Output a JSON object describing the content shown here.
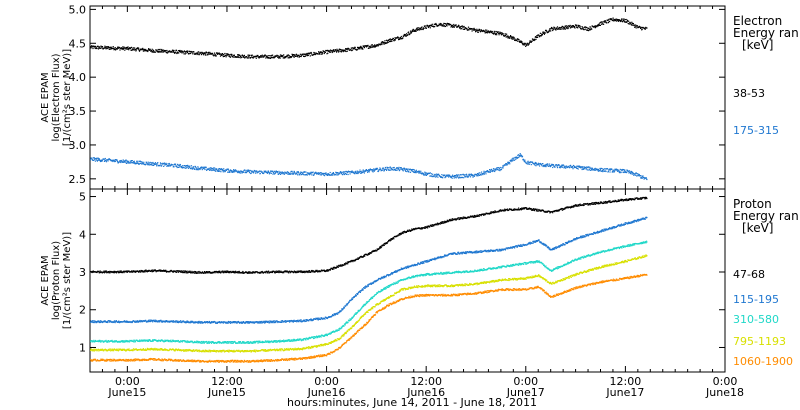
{
  "chart_data": [
    {
      "type": "scatter",
      "ylabel": [
        "ACE EPAM",
        "log(Electron Flux)",
        "[1/(cm²s ster MeV)]"
      ],
      "ylim": [
        2.35,
        5.05
      ],
      "yticks": [
        "2.5",
        "3.0",
        "3.5",
        "4.0",
        "4.5",
        "5.0"
      ],
      "legend_title": [
        "Electron",
        "Energy ran",
        "[keV]"
      ],
      "series": [
        {
          "name": "38-53",
          "color": "#000000",
          "x": [
            -0.375,
            0,
            0.25,
            0.5,
            0.75,
            1.0,
            1.25,
            1.5,
            1.75,
            2.0,
            2.25,
            2.5,
            2.625,
            2.75,
            2.875,
            3.0,
            3.125,
            3.25,
            3.5,
            3.75,
            3.875,
            4.0,
            4.125,
            4.25,
            4.5,
            4.625,
            4.75,
            4.875,
            5.0,
            5.125,
            5.21
          ],
          "values": [
            4.45,
            4.43,
            4.4,
            4.38,
            4.36,
            4.33,
            4.31,
            4.31,
            4.33,
            4.38,
            4.42,
            4.48,
            4.55,
            4.6,
            4.7,
            4.75,
            4.79,
            4.77,
            4.7,
            4.65,
            4.58,
            4.48,
            4.62,
            4.72,
            4.76,
            4.72,
            4.8,
            4.86,
            4.84,
            4.74,
            4.72
          ]
        },
        {
          "name": "175-315",
          "color": "#1f77d0",
          "x": [
            -0.375,
            0,
            0.25,
            0.5,
            0.75,
            1.0,
            1.25,
            1.5,
            1.75,
            2.0,
            2.25,
            2.5,
            2.625,
            2.75,
            2.875,
            3.0,
            3.125,
            3.25,
            3.5,
            3.625,
            3.75,
            3.875,
            3.94,
            4.0,
            4.125,
            4.25,
            4.5,
            4.75,
            5.0,
            5.125,
            5.21
          ],
          "values": [
            2.8,
            2.76,
            2.73,
            2.7,
            2.66,
            2.63,
            2.61,
            2.6,
            2.59,
            2.58,
            2.6,
            2.64,
            2.66,
            2.65,
            2.62,
            2.58,
            2.55,
            2.54,
            2.56,
            2.62,
            2.66,
            2.8,
            2.86,
            2.75,
            2.72,
            2.7,
            2.68,
            2.64,
            2.62,
            2.56,
            2.5
          ]
        }
      ]
    },
    {
      "type": "scatter",
      "ylabel": [
        "ACE EPAM",
        "log(Proton Flux)",
        "[1/(cm²s ster MeV)]"
      ],
      "ylim": [
        0.35,
        5.2
      ],
      "yticks": [
        "1",
        "2",
        "3",
        "4",
        "5"
      ],
      "legend_title": [
        "Proton",
        "Energy ran",
        "[keV]"
      ],
      "series": [
        {
          "name": "47-68",
          "color": "#000000",
          "x": [
            -0.375,
            0,
            0.25,
            0.5,
            0.75,
            1.0,
            1.25,
            1.5,
            1.75,
            2.0,
            2.25,
            2.5,
            2.625,
            2.75,
            2.875,
            3.0,
            3.125,
            3.25,
            3.5,
            3.75,
            4.0,
            4.25,
            4.5,
            4.75,
            5.0,
            5.21
          ],
          "values": [
            3.02,
            3.02,
            3.05,
            3.03,
            3.0,
            3.02,
            3.0,
            3.02,
            3.02,
            3.05,
            3.3,
            3.6,
            3.85,
            4.05,
            4.15,
            4.2,
            4.3,
            4.4,
            4.5,
            4.65,
            4.7,
            4.6,
            4.78,
            4.85,
            4.93,
            4.98
          ]
        },
        {
          "name": "115-195",
          "color": "#1f77d0",
          "x": [
            -0.375,
            0,
            0.25,
            0.5,
            0.75,
            1.0,
            1.25,
            1.5,
            1.75,
            2.0,
            2.125,
            2.25,
            2.375,
            2.5,
            2.625,
            2.75,
            2.875,
            3.0,
            3.125,
            3.25,
            3.5,
            3.75,
            4.0,
            4.125,
            4.25,
            4.5,
            4.75,
            5.0,
            5.21
          ],
          "values": [
            1.7,
            1.7,
            1.72,
            1.7,
            1.68,
            1.68,
            1.68,
            1.7,
            1.72,
            1.8,
            1.95,
            2.3,
            2.6,
            2.8,
            2.95,
            3.1,
            3.2,
            3.3,
            3.4,
            3.5,
            3.55,
            3.6,
            3.75,
            3.85,
            3.6,
            3.9,
            4.1,
            4.3,
            4.45
          ]
        },
        {
          "name": "310-580",
          "color": "#20d8c8",
          "x": [
            -0.375,
            0,
            0.25,
            0.5,
            0.75,
            1.0,
            1.25,
            1.5,
            1.75,
            2.0,
            2.125,
            2.25,
            2.375,
            2.5,
            2.625,
            2.75,
            2.875,
            3.0,
            3.25,
            3.5,
            3.75,
            4.0,
            4.125,
            4.25,
            4.5,
            4.75,
            5.0,
            5.21
          ],
          "values": [
            1.18,
            1.18,
            1.2,
            1.18,
            1.15,
            1.15,
            1.15,
            1.18,
            1.22,
            1.35,
            1.5,
            1.8,
            2.15,
            2.45,
            2.65,
            2.8,
            2.9,
            2.95,
            3.0,
            3.05,
            3.15,
            3.25,
            3.3,
            3.05,
            3.35,
            3.55,
            3.7,
            3.82
          ]
        },
        {
          "name": "795-1193",
          "color": "#d8e000",
          "x": [
            -0.375,
            0,
            0.25,
            0.5,
            0.75,
            1.0,
            1.25,
            1.5,
            1.75,
            2.0,
            2.125,
            2.25,
            2.375,
            2.5,
            2.625,
            2.75,
            2.875,
            3.0,
            3.25,
            3.5,
            3.75,
            4.0,
            4.125,
            4.25,
            4.5,
            4.75,
            5.0,
            5.21
          ],
          "values": [
            0.95,
            0.95,
            0.97,
            0.95,
            0.92,
            0.92,
            0.92,
            0.95,
            0.98,
            1.1,
            1.25,
            1.55,
            1.9,
            2.15,
            2.35,
            2.55,
            2.62,
            2.65,
            2.65,
            2.7,
            2.8,
            2.85,
            2.92,
            2.7,
            2.95,
            3.15,
            3.3,
            3.45
          ]
        },
        {
          "name": "1060-1900",
          "color": "#ff8c00",
          "x": [
            -0.375,
            0,
            0.25,
            0.5,
            0.75,
            1.0,
            1.25,
            1.5,
            1.75,
            2.0,
            2.125,
            2.25,
            2.375,
            2.5,
            2.625,
            2.75,
            2.875,
            3.0,
            3.25,
            3.5,
            3.75,
            4.0,
            4.125,
            4.25,
            4.5,
            4.75,
            5.0,
            5.21
          ],
          "values": [
            0.68,
            0.68,
            0.7,
            0.67,
            0.65,
            0.65,
            0.65,
            0.68,
            0.72,
            0.82,
            1.0,
            1.3,
            1.6,
            1.95,
            2.15,
            2.3,
            2.38,
            2.4,
            2.4,
            2.45,
            2.55,
            2.55,
            2.62,
            2.35,
            2.6,
            2.75,
            2.85,
            2.95
          ]
        }
      ]
    }
  ],
  "x_axis": {
    "xlim": [
      -0.375,
      6.0
    ],
    "ticks": [
      {
        "x": 0,
        "time": "0:00",
        "date": "June15"
      },
      {
        "x": 1,
        "time": "12:00",
        "date": "June15"
      },
      {
        "x": 2,
        "time": "0:00",
        "date": "June16"
      },
      {
        "x": 3,
        "time": "12:00",
        "date": "June16"
      },
      {
        "x": 4,
        "time": "0:00",
        "date": "June17"
      },
      {
        "x": 5,
        "time": "12:00",
        "date": "June17"
      },
      {
        "x": 6,
        "time": "0:00",
        "date": "June18"
      }
    ],
    "label": "hours:minutes, June 14, 2011 - June 18, 2011"
  }
}
